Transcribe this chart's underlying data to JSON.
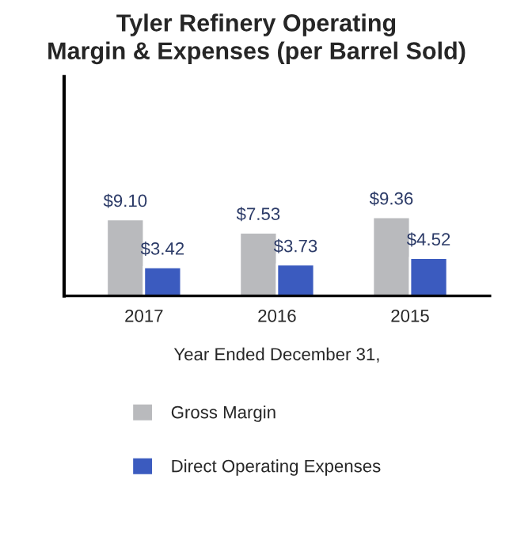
{
  "chart_data": {
    "type": "bar",
    "title": "Tyler Refinery Operating\nMargin & Expenses (per Barrel Sold)",
    "xlabel": "Year Ended December 31,",
    "categories": [
      "2017",
      "2016",
      "2015"
    ],
    "series": [
      {
        "name": "Gross Margin",
        "color": "#b9babd",
        "values": [
          9.1,
          7.53,
          9.36
        ],
        "value_labels": [
          "$9.10",
          "$7.53",
          "$9.36"
        ]
      },
      {
        "name": "Direct Operating Expenses",
        "color": "#3b5bbf",
        "values": [
          3.42,
          3.73,
          4.52
        ],
        "value_labels": [
          "$3.42",
          "$3.73",
          "$4.52"
        ]
      }
    ],
    "ylim": [
      0,
      26
    ],
    "tick_labels": "x",
    "legend": "bottom",
    "grid": false
  }
}
